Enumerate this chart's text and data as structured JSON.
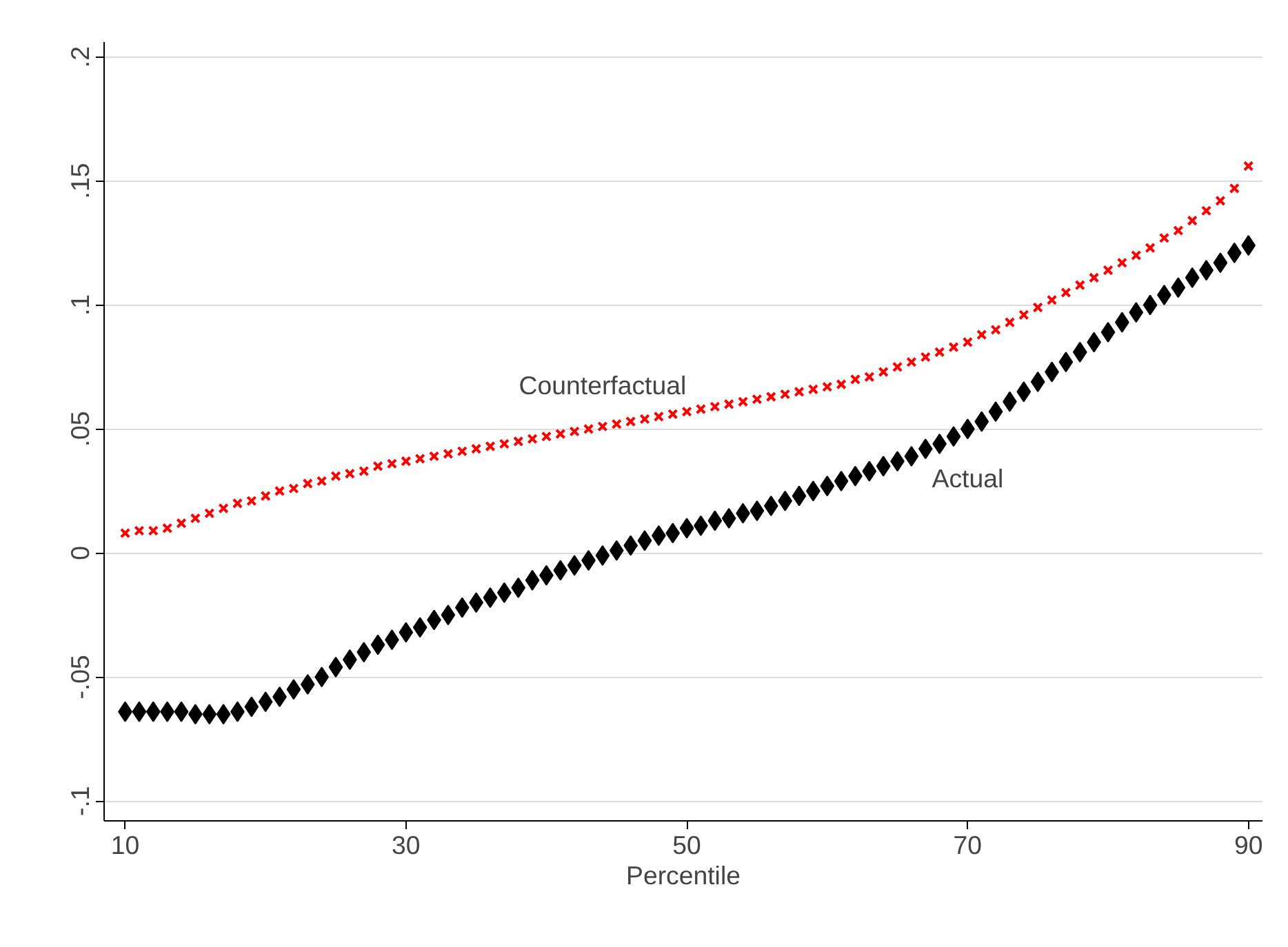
{
  "chart_data": {
    "type": "scatter",
    "xlabel": "Percentile",
    "x": [
      10,
      11,
      12,
      13,
      14,
      15,
      16,
      17,
      18,
      19,
      20,
      21,
      22,
      23,
      24,
      25,
      26,
      27,
      28,
      29,
      30,
      31,
      32,
      33,
      34,
      35,
      36,
      37,
      38,
      39,
      40,
      41,
      42,
      43,
      44,
      45,
      46,
      47,
      48,
      49,
      50,
      51,
      52,
      53,
      54,
      55,
      56,
      57,
      58,
      59,
      60,
      61,
      62,
      63,
      64,
      65,
      66,
      67,
      68,
      69,
      70,
      71,
      72,
      73,
      74,
      75,
      76,
      77,
      78,
      79,
      80,
      81,
      82,
      83,
      84,
      85,
      86,
      87,
      88,
      89,
      90
    ],
    "series": [
      {
        "color": "#ff0000",
        "marker": "cross",
        "values": [
          0.008,
          0.009,
          0.009,
          0.01,
          0.012,
          0.014,
          0.016,
          0.018,
          0.02,
          0.021,
          0.023,
          0.025,
          0.026,
          0.028,
          0.029,
          0.031,
          0.032,
          0.033,
          0.035,
          0.036,
          0.037,
          0.038,
          0.039,
          0.04,
          0.041,
          0.042,
          0.043,
          0.044,
          0.045,
          0.046,
          0.047,
          0.048,
          0.049,
          0.05,
          0.051,
          0.052,
          0.053,
          0.054,
          0.055,
          0.056,
          0.057,
          0.058,
          0.059,
          0.06,
          0.061,
          0.062,
          0.063,
          0.064,
          0.065,
          0.066,
          0.067,
          0.068,
          0.07,
          0.071,
          0.073,
          0.075,
          0.077,
          0.079,
          0.081,
          0.083,
          0.085,
          0.088,
          0.09,
          0.093,
          0.096,
          0.099,
          0.102,
          0.105,
          0.108,
          0.111,
          0.114,
          0.117,
          0.12,
          0.123,
          0.127,
          0.13,
          0.134,
          0.138,
          0.142,
          0.147,
          0.156
        ]
      },
      {
        "color": "#000000",
        "marker": "diamond",
        "values": [
          -0.064,
          -0.064,
          -0.064,
          -0.064,
          -0.064,
          -0.065,
          -0.065,
          -0.065,
          -0.064,
          -0.062,
          -0.06,
          -0.058,
          -0.055,
          -0.053,
          -0.05,
          -0.046,
          -0.043,
          -0.04,
          -0.037,
          -0.035,
          -0.032,
          -0.03,
          -0.027,
          -0.025,
          -0.022,
          -0.02,
          -0.018,
          -0.016,
          -0.014,
          -0.011,
          -0.009,
          -0.007,
          -0.005,
          -0.003,
          -0.001,
          0.001,
          0.003,
          0.005,
          0.007,
          0.008,
          0.01,
          0.011,
          0.013,
          0.014,
          0.016,
          0.017,
          0.019,
          0.021,
          0.023,
          0.025,
          0.027,
          0.029,
          0.031,
          0.033,
          0.035,
          0.037,
          0.039,
          0.042,
          0.044,
          0.047,
          0.05,
          0.053,
          0.057,
          0.061,
          0.065,
          0.069,
          0.073,
          0.077,
          0.081,
          0.085,
          0.089,
          0.093,
          0.097,
          0.1,
          0.104,
          0.107,
          0.111,
          0.114,
          0.117,
          0.121,
          0.124
        ]
      }
    ],
    "annotations": [
      "Counterfactual",
      "Actual"
    ],
    "xlim": [
      8.5,
      91
    ],
    "xticks": [
      10,
      30,
      50,
      70,
      90
    ],
    "ylim": [
      -0.108,
      0.206
    ],
    "yticks": [
      {
        "value": -0.1,
        "label": "-.1"
      },
      {
        "value": -0.05,
        "label": "-.05"
      },
      {
        "value": 0,
        "label": "0"
      },
      {
        "value": 0.05,
        "label": ".05"
      },
      {
        "value": 0.1,
        "label": ".1"
      },
      {
        "value": 0.15,
        "label": ".15"
      },
      {
        "value": 0.2,
        "label": ".2"
      }
    ],
    "grid": "y"
  }
}
